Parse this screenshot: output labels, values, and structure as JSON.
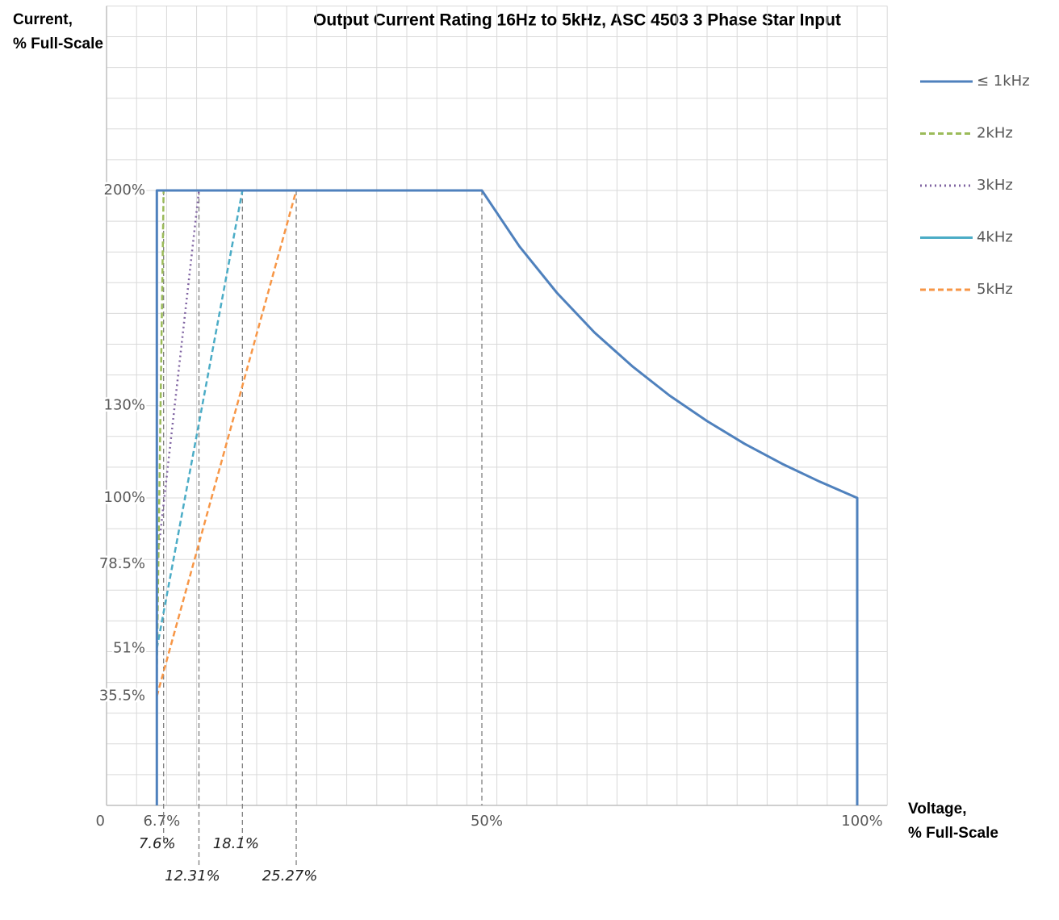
{
  "chart_data": {
    "type": "line",
    "title": "Output Current Rating 16Hz to 5kHz, ASC 4503 3 Phase Star Input",
    "y_axis_label": [
      "Current,",
      "% Full-Scale"
    ],
    "x_axis_label": [
      "Voltage,",
      "% Full-Scale"
    ],
    "xlim": [
      0,
      104
    ],
    "ylim": [
      0,
      260
    ],
    "xticks": [
      0,
      {
        "value": 6.7,
        "label": "6.7%"
      },
      {
        "value": 7.6,
        "label": "7.6%"
      },
      {
        "value": 12.31,
        "label": "12.31%"
      },
      {
        "value": 18.1,
        "label": "18.1%"
      },
      {
        "value": 25.27,
        "label": "25.27%"
      },
      {
        "value": 50,
        "label": "50%"
      },
      {
        "value": 100,
        "label": "100%"
      }
    ],
    "yticks": [
      {
        "value": 35.5,
        "label": "35.5%"
      },
      {
        "value": 51,
        "label": "51%"
      },
      {
        "value": 78.5,
        "label": "78.5%"
      },
      {
        "value": 100,
        "label": "100%"
      },
      {
        "value": 130,
        "label": "130%"
      },
      {
        "value": 200,
        "label": "200%"
      }
    ],
    "grid": true,
    "grid_step": {
      "x": 4,
      "y": 10
    },
    "legend": "right",
    "series": [
      {
        "name": "≤ 1kHz",
        "color": "#4f81bd",
        "line_style": "solid",
        "x": [
          6.7,
          6.7,
          50,
          55,
          60,
          65,
          70,
          75,
          80,
          85,
          90,
          95,
          100,
          100
        ],
        "values": [
          0,
          200,
          200,
          181.8,
          166.7,
          153.8,
          142.9,
          133.3,
          125,
          117.6,
          111.1,
          105.3,
          100,
          0
        ]
      },
      {
        "name": "2kHz",
        "color": "#9bbb59",
        "line_style": "dashed",
        "x": [
          6.7,
          7.6
        ],
        "values": [
          43,
          200
        ]
      },
      {
        "name": "3kHz",
        "color": "#8064a2",
        "line_style": "dotted",
        "x": [
          6.7,
          12.31
        ],
        "values": [
          78.5,
          200
        ]
      },
      {
        "name": "4kHz",
        "color": "#4bacc6",
        "line_style": "dashed",
        "x": [
          6.7,
          18.1
        ],
        "values": [
          51,
          200
        ]
      },
      {
        "name": "5kHz",
        "color": "#f79646",
        "line_style": "dashed",
        "x": [
          6.7,
          25.27
        ],
        "values": [
          35.5,
          200
        ]
      }
    ]
  }
}
